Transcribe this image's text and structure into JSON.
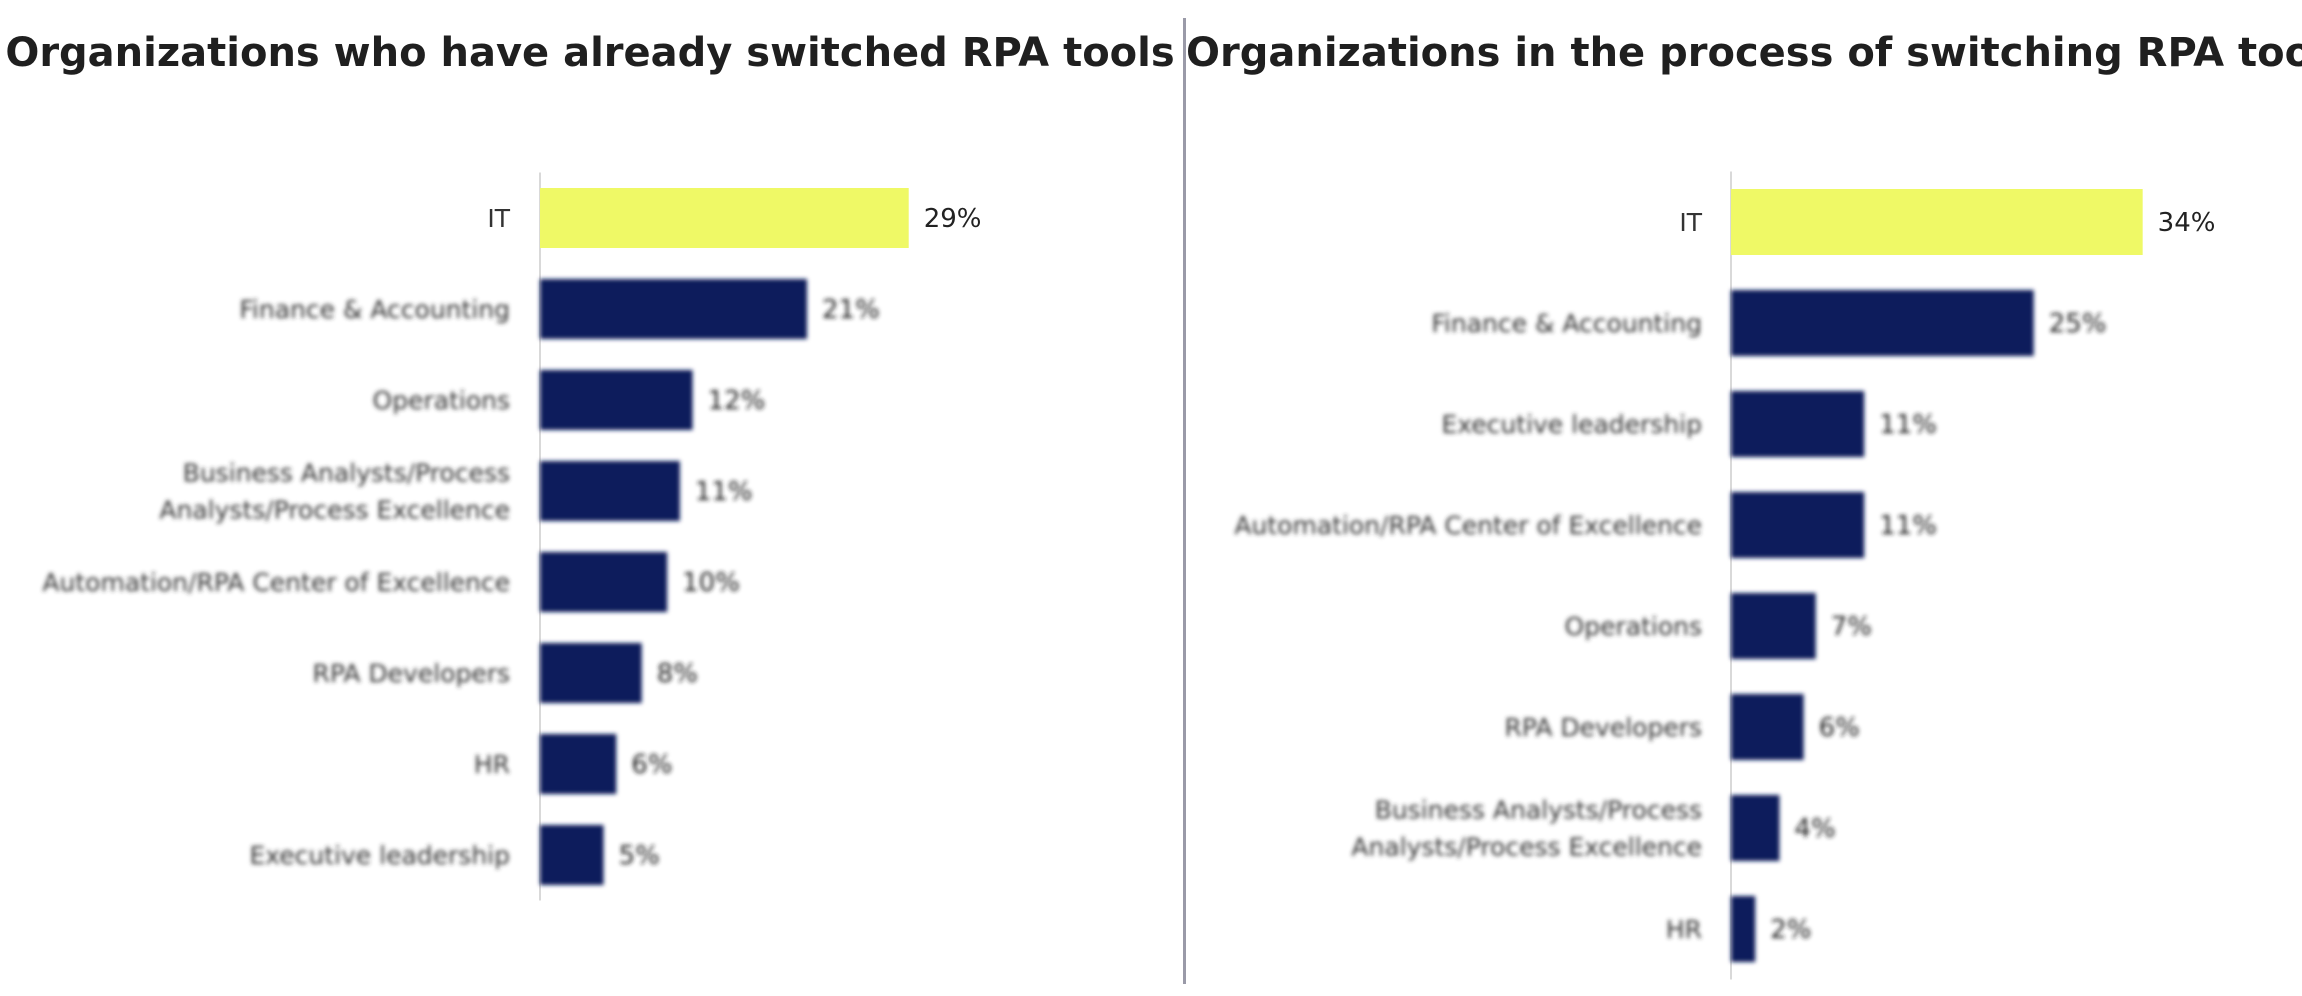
{
  "chart_data": [
    {
      "type": "bar",
      "orientation": "horizontal",
      "title": "Organizations who have already switched RPA tools",
      "categories": [
        "IT",
        "Finance & Accounting",
        "Operations",
        "Business Analysts/Process Analysts/Process Excellence",
        "Automation/RPA Center of Excellence",
        "RPA Developers",
        "HR",
        "Executive leadership"
      ],
      "label_lines": [
        [
          "IT"
        ],
        [
          "Finance & Accounting"
        ],
        [
          "Operations"
        ],
        [
          "Business Analysts/Process",
          "Analysts/Process Excellence"
        ],
        [
          "Automation/RPA Center of Excellence"
        ],
        [
          "RPA Developers"
        ],
        [
          "HR"
        ],
        [
          "Executive leadership"
        ]
      ],
      "values": [
        29,
        21,
        12,
        11,
        10,
        8,
        6,
        5
      ],
      "value_labels": [
        "29%",
        "21%",
        "12%",
        "11%",
        "10%",
        "8%",
        "6%",
        "5%"
      ],
      "unit": "%",
      "highlight_index": 0,
      "xlim": [
        0,
        35
      ],
      "grid": false,
      "legend": "none",
      "colors": {
        "highlight": "#eff966",
        "bar": "#0c1f5c",
        "axis": "#d9d9d9"
      }
    },
    {
      "type": "bar",
      "orientation": "horizontal",
      "title": "Organizations in the process of switching RPA tools",
      "categories": [
        "IT",
        "Finance & Accounting",
        "Executive leadership",
        "Automation/RPA Center of Excellence",
        "Operations",
        "RPA Developers",
        "Business Analysts/Process Analysts/Process Excellence",
        "HR"
      ],
      "label_lines": [
        [
          "IT"
        ],
        [
          "Finance & Accounting"
        ],
        [
          "Executive leadership"
        ],
        [
          "Automation/RPA Center of Excellence"
        ],
        [
          "Operations"
        ],
        [
          "RPA Developers"
        ],
        [
          "Business Analysts/Process",
          "Analysts/Process Excellence"
        ],
        [
          "HR"
        ]
      ],
      "values": [
        34,
        25,
        11,
        11,
        7,
        6,
        4,
        2
      ],
      "value_labels": [
        "34%",
        "25%",
        "11%",
        "11%",
        "7%",
        "6%",
        "4%",
        "2%"
      ],
      "unit": "%",
      "highlight_index": 0,
      "xlim": [
        0,
        37
      ],
      "grid": false,
      "legend": "none",
      "colors": {
        "highlight": "#eff966",
        "bar": "#0c1f5c",
        "axis": "#d9d9d9"
      }
    }
  ]
}
